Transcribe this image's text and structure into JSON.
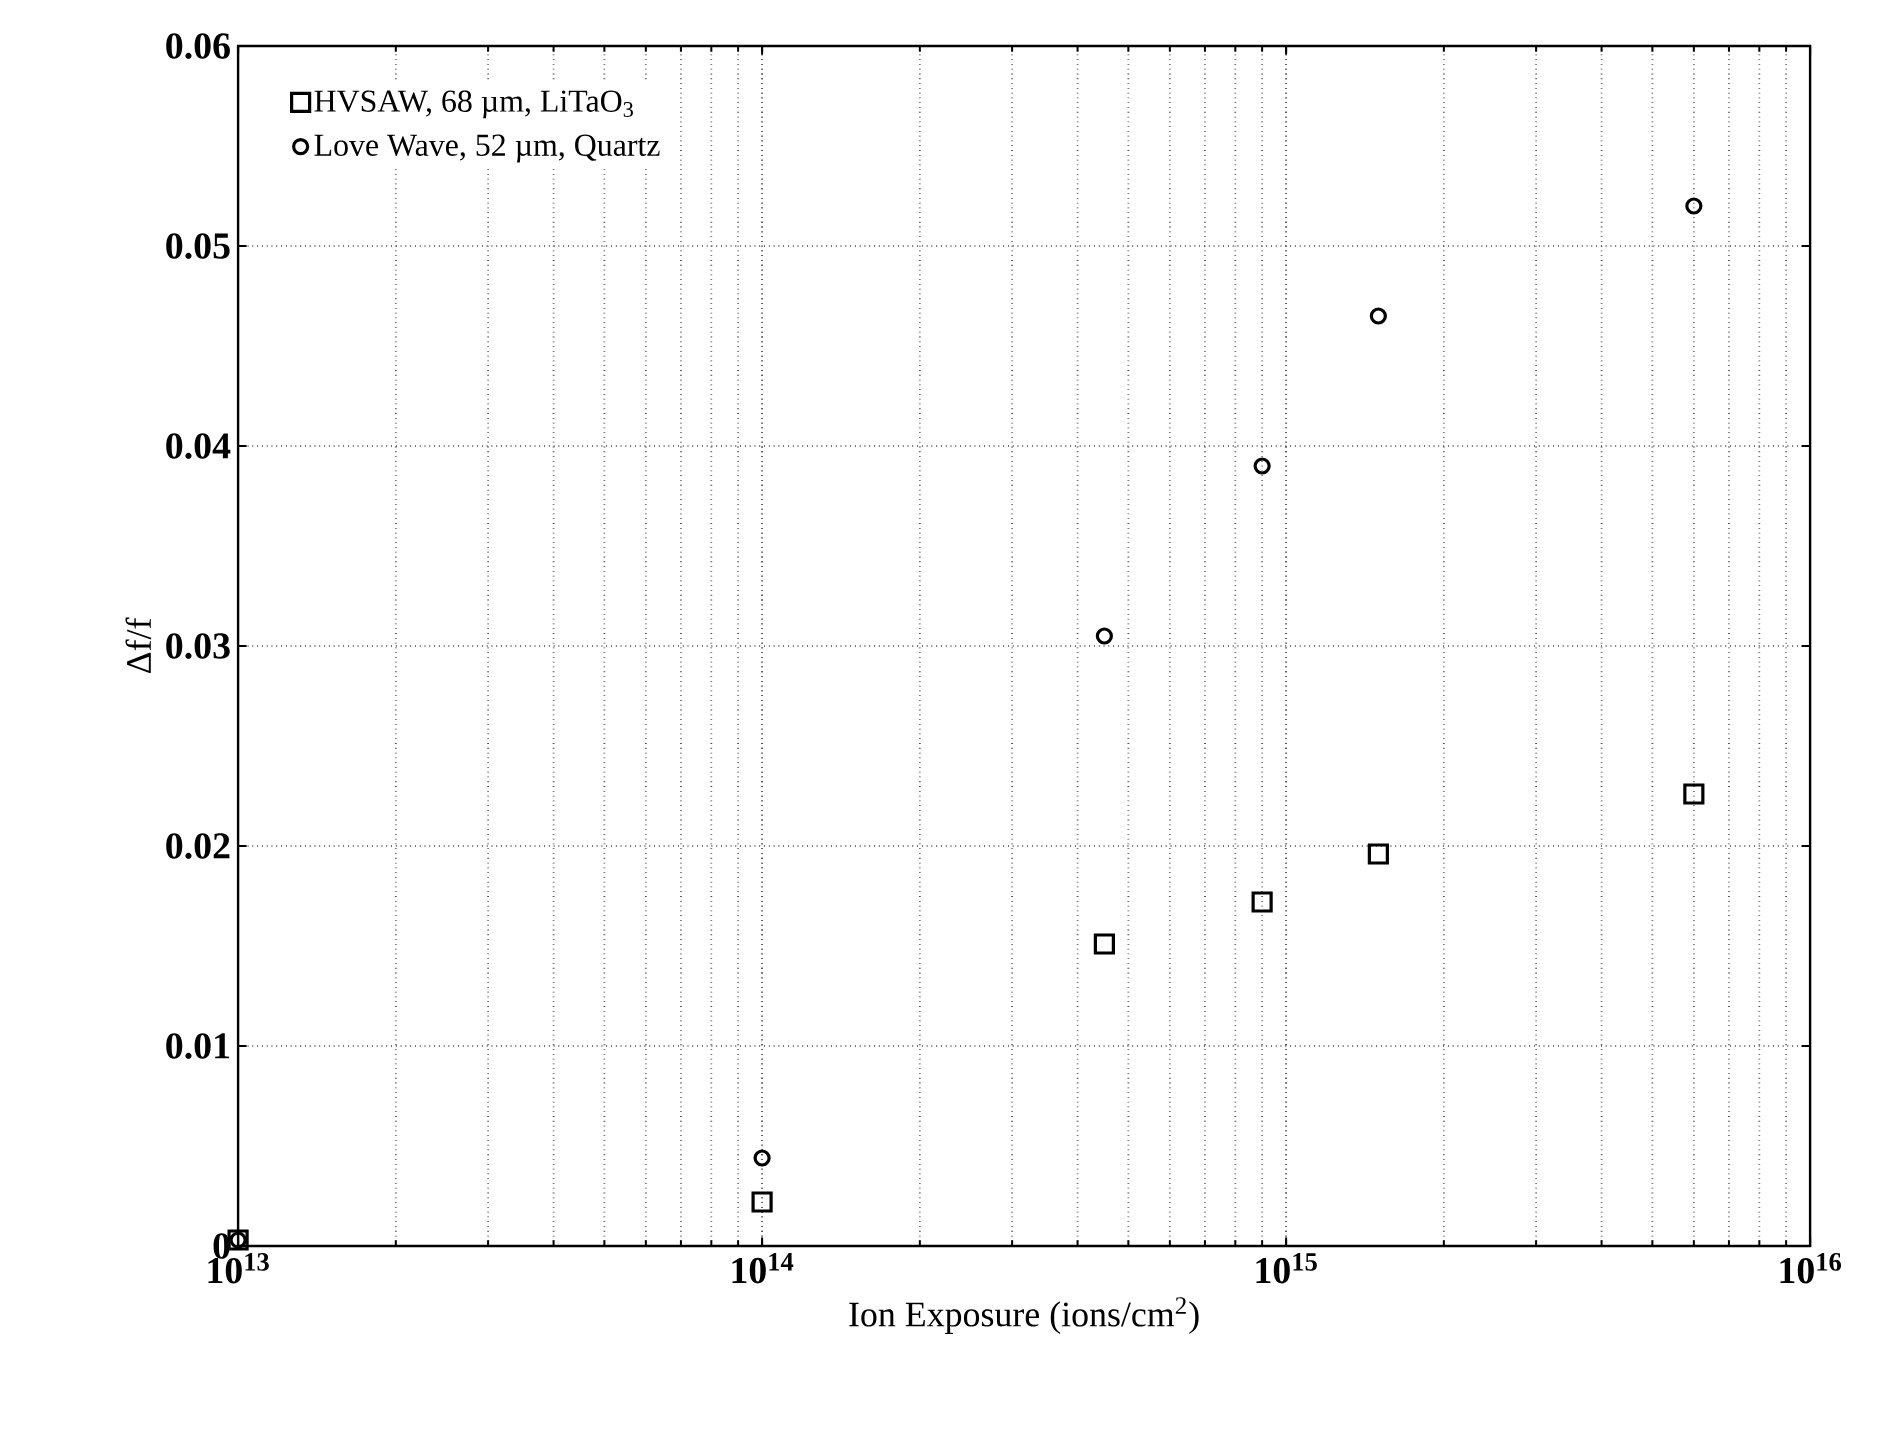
{
  "chart_data": {
    "type": "scatter",
    "xlabel": "Ion Exposure (ions/cm$^{2}$)",
    "ylabel": "Δf/f",
    "x": [
      10000000000000.0,
      100000000000000.0,
      450000000000000.0,
      900000000000000.0,
      1500000000000000.0,
      6000000000000000.0
    ],
    "series": [
      {
        "name": "HVSAW, 68 µm, LiTaO$_{3}$",
        "color": "#000000",
        "marker": "square",
        "values": [
          0.0003,
          0.0022,
          0.0151,
          0.0172,
          0.0196,
          0.0226
        ]
      },
      {
        "name": "Love Wave, 52 µm, Quartz",
        "color": "#000000",
        "marker": "circle",
        "values": [
          0.0003,
          0.0044,
          0.0305,
          0.039,
          0.0465,
          0.052
        ]
      }
    ],
    "log": "x",
    "xlim": [
      10000000000000.0,
      1e+16
    ],
    "ylim": [
      0,
      0.06
    ],
    "xticks": [
      {
        "value": 10000000000000.0,
        "label": "10$^{13}$"
      },
      {
        "value": 100000000000000.0,
        "label": "10$^{14}$"
      },
      {
        "value": 1000000000000000.0,
        "label": "10$^{15}$"
      },
      {
        "value": 1e+16,
        "label": "10$^{16}$"
      }
    ],
    "yticks": [
      0,
      0.01,
      0.02,
      0.03,
      0.04,
      0.05,
      0.06
    ],
    "grid": true,
    "legend": "top left"
  }
}
